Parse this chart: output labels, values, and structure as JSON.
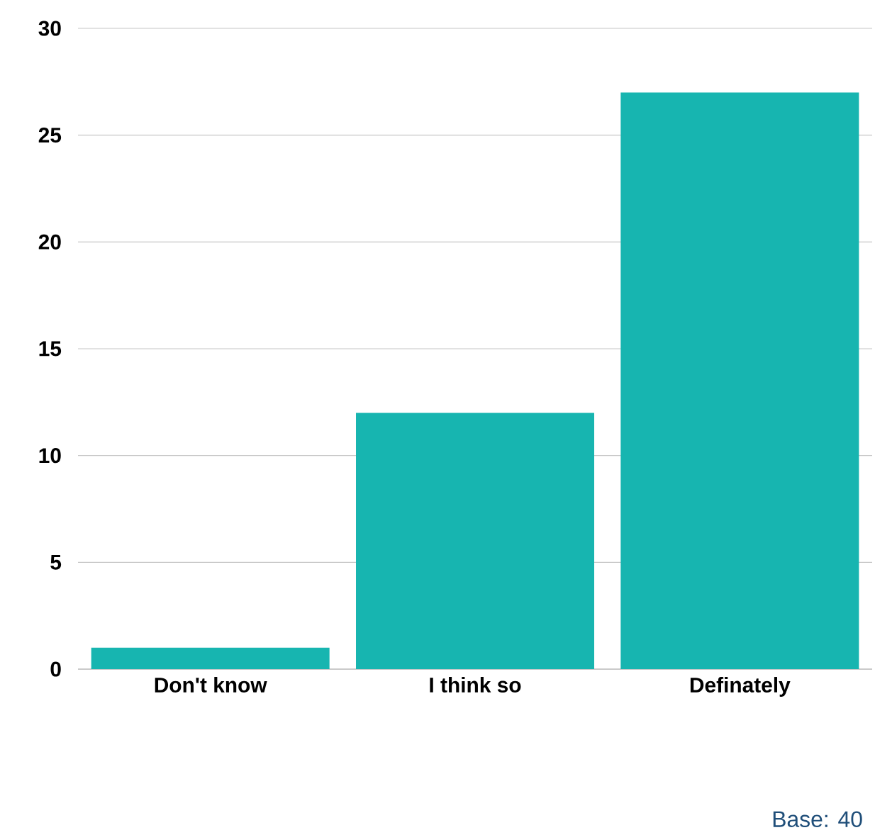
{
  "chart_data": {
    "type": "bar",
    "categories": [
      "Don't know",
      "I think so",
      "Definately"
    ],
    "values": [
      1,
      12,
      27
    ],
    "color": "#17b5b0",
    "ylim": [
      0,
      30
    ],
    "yticks": [
      0,
      5,
      10,
      15,
      20,
      25,
      30
    ],
    "grid": "y",
    "annotations": [
      "Base: 40"
    ]
  }
}
